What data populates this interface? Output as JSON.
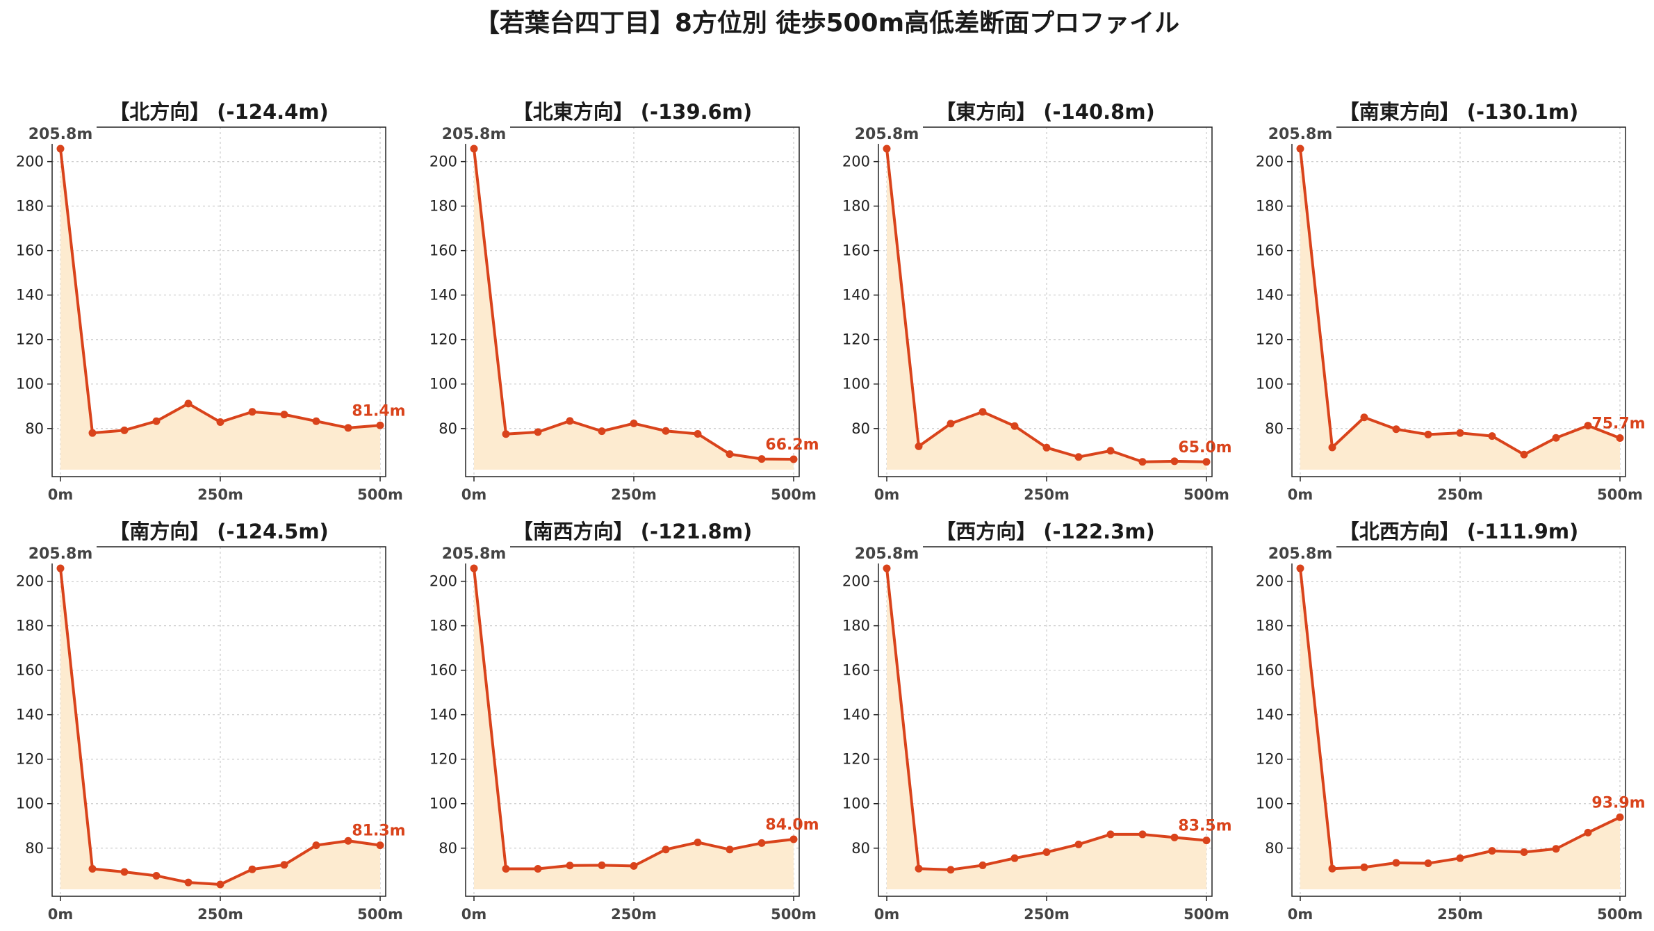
{
  "title": "【若葉台四丁目】8方位別 徒歩500m高低差断面プロファイル",
  "colors": {
    "line": "#d9431b",
    "fill": "#fdebd0"
  },
  "chart_data": [
    {
      "type": "area",
      "title": "【北方向】 (-124.4m)",
      "x": [
        0,
        50,
        100,
        150,
        200,
        250,
        300,
        350,
        400,
        450,
        500
      ],
      "y": [
        205.8,
        78.0,
        79.2,
        83.3,
        91.2,
        82.9,
        87.5,
        86.3,
        83.3,
        80.3,
        81.4
      ],
      "start_label": "205.8m",
      "end_label": "81.4m",
      "xticks": [
        0,
        250,
        500
      ],
      "xtick_labels": [
        "0m",
        "250m",
        "500m"
      ],
      "yticks": [
        80,
        100,
        120,
        140,
        160,
        180,
        200
      ],
      "ylim": [
        61.5,
        213.0
      ],
      "grid": true
    },
    {
      "type": "area",
      "title": "【北東方向】 (-139.6m)",
      "x": [
        0,
        50,
        100,
        150,
        200,
        250,
        300,
        350,
        400,
        450,
        500
      ],
      "y": [
        205.8,
        77.5,
        78.4,
        83.4,
        78.8,
        82.3,
        78.9,
        77.6,
        68.5,
        66.3,
        66.2
      ],
      "start_label": "205.8m",
      "end_label": "66.2m",
      "xticks": [
        0,
        250,
        500
      ],
      "xtick_labels": [
        "0m",
        "250m",
        "500m"
      ],
      "yticks": [
        80,
        100,
        120,
        140,
        160,
        180,
        200
      ],
      "ylim": [
        61.5,
        213.0
      ],
      "grid": true
    },
    {
      "type": "area",
      "title": "【東方向】 (-140.8m)",
      "x": [
        0,
        50,
        100,
        150,
        200,
        250,
        300,
        350,
        400,
        450,
        500
      ],
      "y": [
        205.8,
        72.0,
        82.2,
        87.5,
        81.1,
        71.4,
        67.2,
        70.0,
        65.0,
        65.3,
        65.0
      ],
      "start_label": "205.8m",
      "end_label": "65.0m",
      "xticks": [
        0,
        250,
        500
      ],
      "xtick_labels": [
        "0m",
        "250m",
        "500m"
      ],
      "yticks": [
        80,
        100,
        120,
        140,
        160,
        180,
        200
      ],
      "ylim": [
        61.5,
        213.0
      ],
      "grid": true
    },
    {
      "type": "area",
      "title": "【南東方向】 (-130.1m)",
      "x": [
        0,
        50,
        100,
        150,
        200,
        250,
        300,
        350,
        400,
        450,
        500
      ],
      "y": [
        205.8,
        71.5,
        85.0,
        79.7,
        77.3,
        78.0,
        76.6,
        68.3,
        75.8,
        81.3,
        75.7
      ],
      "start_label": "205.8m",
      "end_label": "75.7m",
      "xticks": [
        0,
        250,
        500
      ],
      "xtick_labels": [
        "0m",
        "250m",
        "500m"
      ],
      "yticks": [
        80,
        100,
        120,
        140,
        160,
        180,
        200
      ],
      "ylim": [
        61.5,
        213.0
      ],
      "grid": true
    },
    {
      "type": "area",
      "title": "【南方向】 (-124.5m)",
      "x": [
        0,
        50,
        100,
        150,
        200,
        250,
        300,
        350,
        400,
        450,
        500
      ],
      "y": [
        205.8,
        70.7,
        69.3,
        67.6,
        64.6,
        63.7,
        70.5,
        72.5,
        81.3,
        83.3,
        81.3
      ],
      "start_label": "205.8m",
      "end_label": "81.3m",
      "xticks": [
        0,
        250,
        500
      ],
      "xtick_labels": [
        "0m",
        "250m",
        "500m"
      ],
      "yticks": [
        80,
        100,
        120,
        140,
        160,
        180,
        200
      ],
      "ylim": [
        61.5,
        213.0
      ],
      "grid": true
    },
    {
      "type": "area",
      "title": "【南西方向】 (-121.8m)",
      "x": [
        0,
        50,
        100,
        150,
        200,
        250,
        300,
        350,
        400,
        450,
        500
      ],
      "y": [
        205.8,
        70.7,
        70.7,
        72.2,
        72.3,
        72.0,
        79.4,
        82.6,
        79.4,
        82.3,
        84.0
      ],
      "start_label": "205.8m",
      "end_label": "84.0m",
      "xticks": [
        0,
        250,
        500
      ],
      "xtick_labels": [
        "0m",
        "250m",
        "500m"
      ],
      "yticks": [
        80,
        100,
        120,
        140,
        160,
        180,
        200
      ],
      "ylim": [
        61.5,
        213.0
      ],
      "grid": true
    },
    {
      "type": "area",
      "title": "【西方向】 (-122.3m)",
      "x": [
        0,
        50,
        100,
        150,
        200,
        250,
        300,
        350,
        400,
        450,
        500
      ],
      "y": [
        205.8,
        70.8,
        70.3,
        72.3,
        75.5,
        78.2,
        81.7,
        86.2,
        86.2,
        84.8,
        83.5
      ],
      "start_label": "205.8m",
      "end_label": "83.5m",
      "xticks": [
        0,
        250,
        500
      ],
      "xtick_labels": [
        "0m",
        "250m",
        "500m"
      ],
      "yticks": [
        80,
        100,
        120,
        140,
        160,
        180,
        200
      ],
      "ylim": [
        61.5,
        213.0
      ],
      "grid": true
    },
    {
      "type": "area",
      "title": "【北西方向】 (-111.9m)",
      "x": [
        0,
        50,
        100,
        150,
        200,
        250,
        300,
        350,
        400,
        450,
        500
      ],
      "y": [
        205.8,
        70.8,
        71.4,
        73.4,
        73.2,
        75.5,
        78.8,
        78.2,
        79.7,
        87.0,
        93.9
      ],
      "start_label": "205.8m",
      "end_label": "93.9m",
      "xticks": [
        0,
        250,
        500
      ],
      "xtick_labels": [
        "0m",
        "250m",
        "500m"
      ],
      "yticks": [
        80,
        100,
        120,
        140,
        160,
        180,
        200
      ],
      "ylim": [
        61.5,
        213.0
      ],
      "grid": true
    }
  ]
}
